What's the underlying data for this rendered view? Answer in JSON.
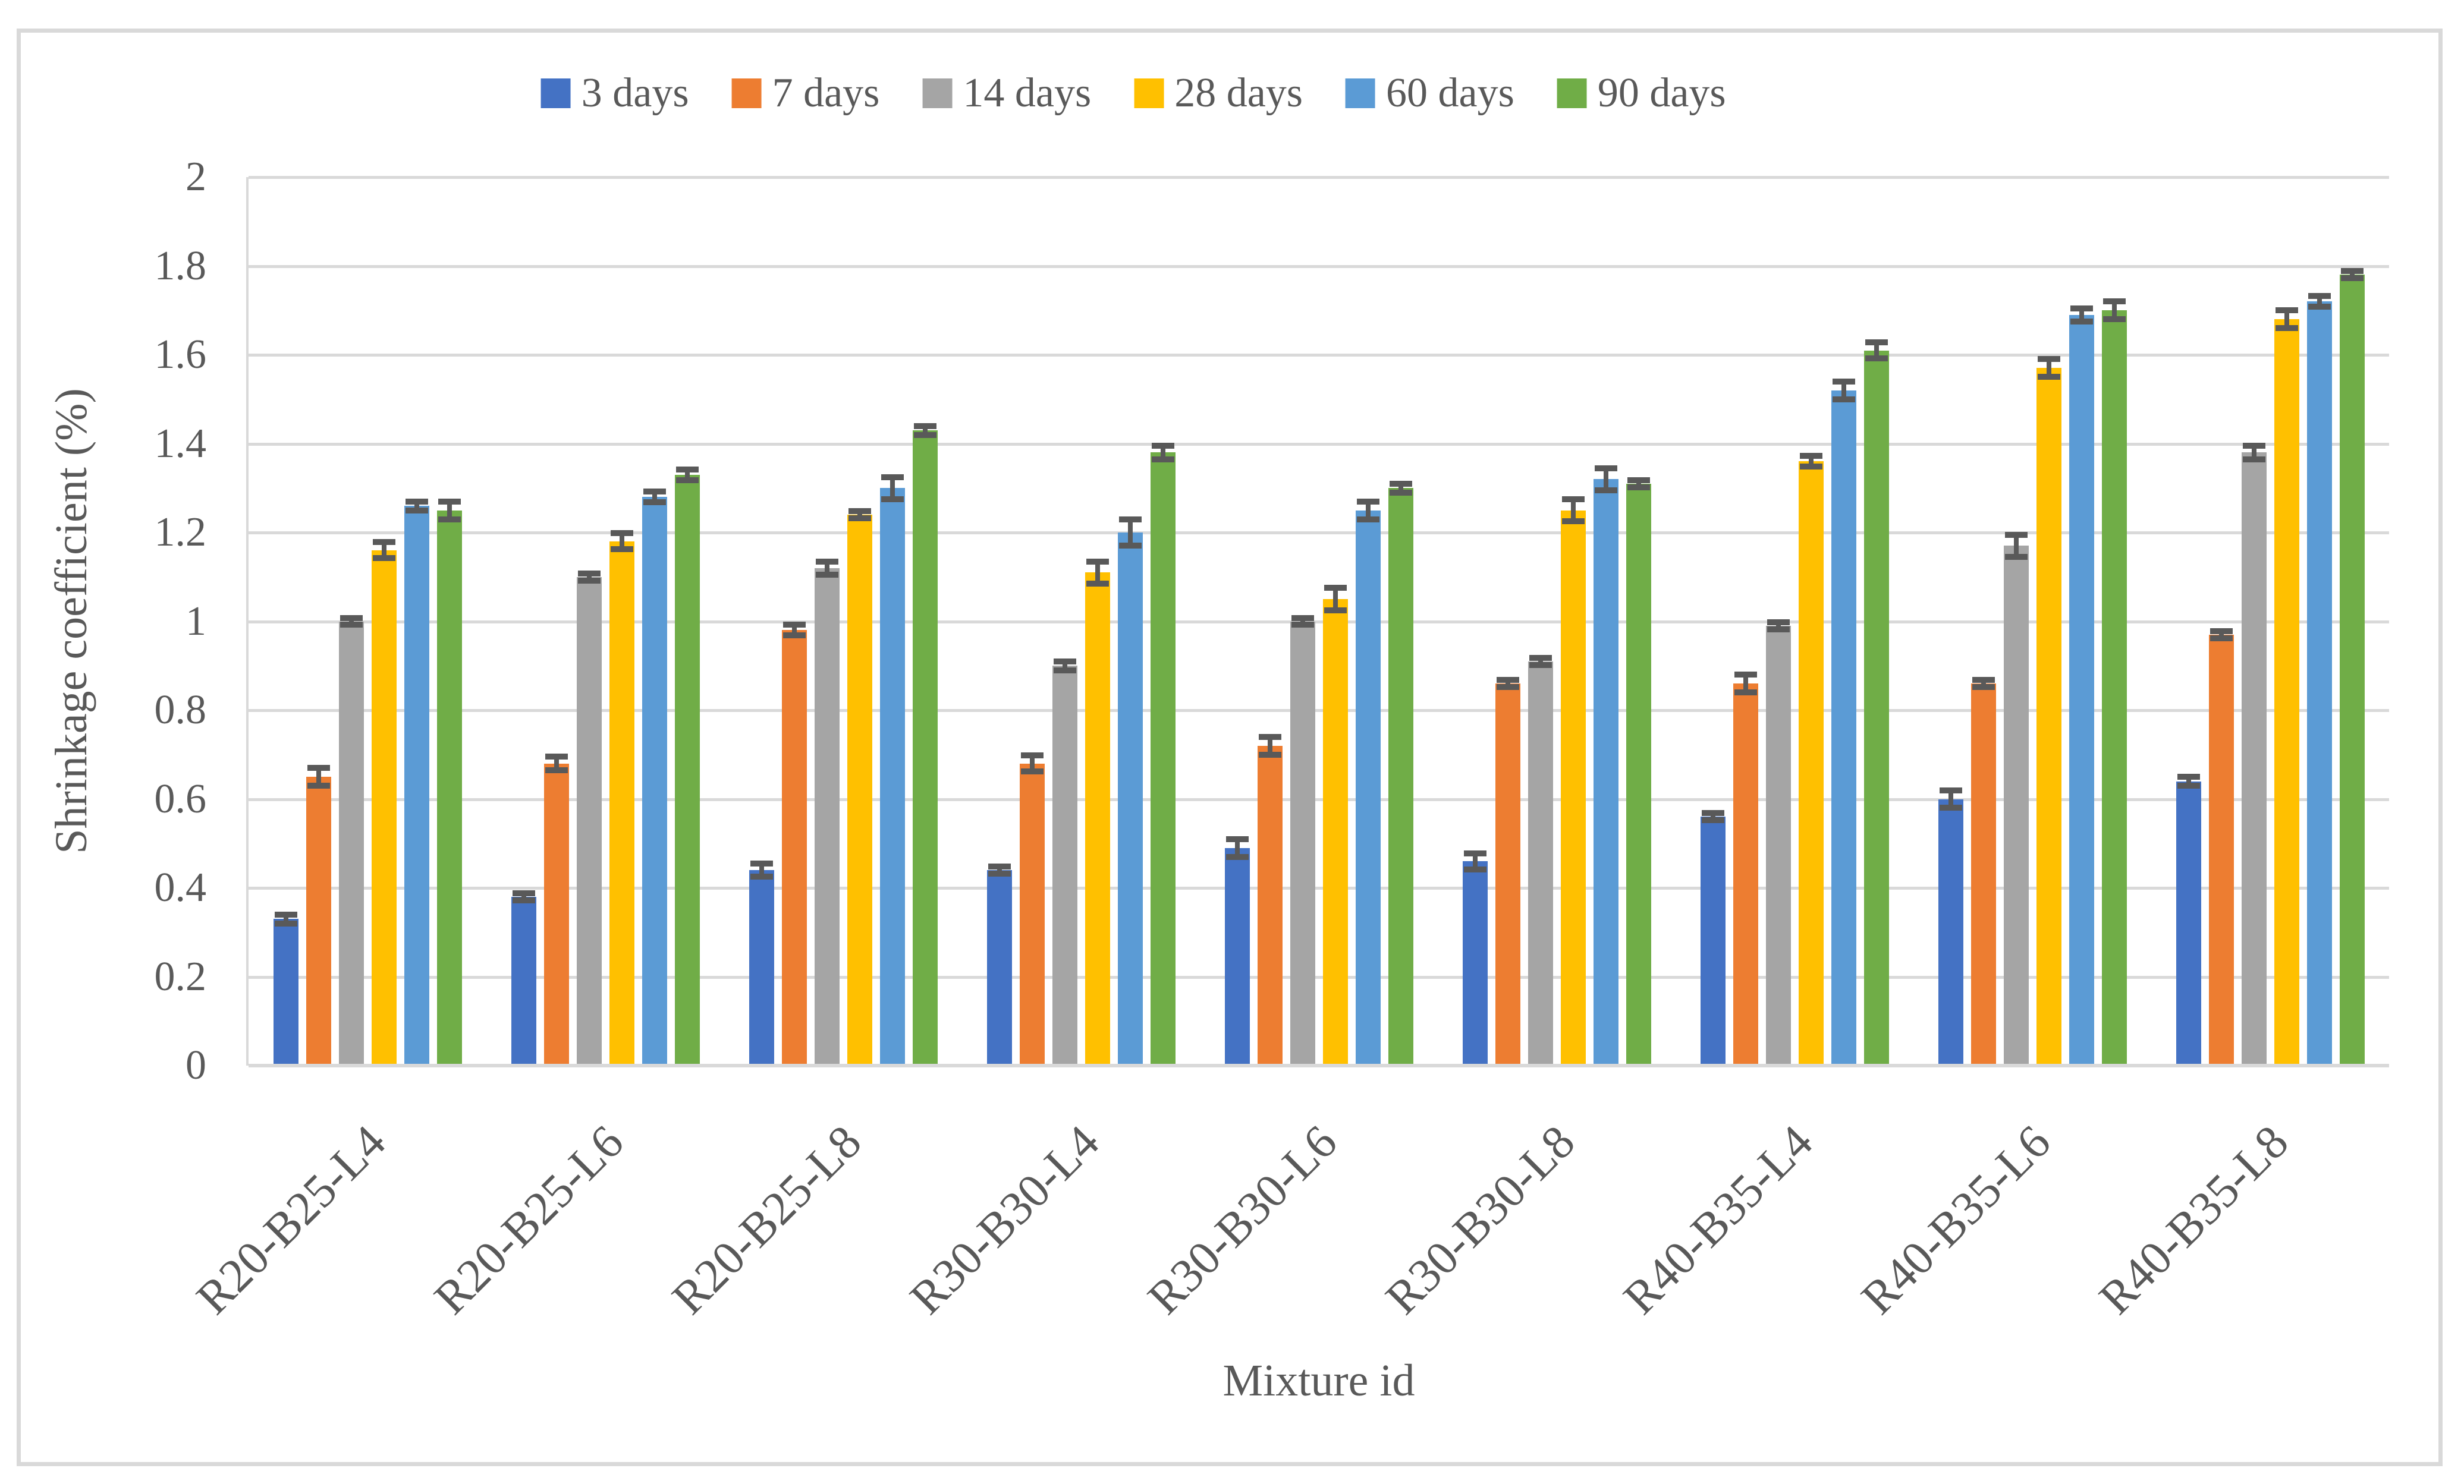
{
  "figure": {
    "background": "#FFFFFF",
    "border_color": "#D9D9D9"
  },
  "chart_data": {
    "type": "bar",
    "title": "",
    "xlabel": "Mixture id",
    "ylabel": "Shrinkage coefficient (%)",
    "ylim": [
      0,
      2
    ],
    "ytick_labels": [
      "2",
      "1.8",
      "1.6",
      "1.4",
      "1.2",
      "1",
      "0.8",
      "0.6",
      "0.4",
      "0.2",
      "0"
    ],
    "grid": true,
    "legend_position": "top-center",
    "error_bars": true,
    "gridline_color": "#D9D9D9",
    "error_bar_color": "#595959",
    "text_color": "#595959",
    "categories": [
      "R20-B25-L4",
      "R20-B25-L6",
      "R20-B25-L8",
      "R30-B30-L4",
      "R30-B30-L6",
      "R30-B30-L8",
      "R40-B35-L4",
      "R40-B35-L6",
      "R40-B35-L8"
    ],
    "series": [
      {
        "name": "3 days",
        "color": "#4472C4",
        "values": [
          0.33,
          0.38,
          0.44,
          0.44,
          0.49,
          0.46,
          0.56,
          0.6,
          0.64
        ],
        "errors": [
          0.01,
          0.008,
          0.015,
          0.008,
          0.02,
          0.018,
          0.008,
          0.02,
          0.01
        ]
      },
      {
        "name": "7 days",
        "color": "#ED7D31",
        "values": [
          0.65,
          0.68,
          0.98,
          0.68,
          0.72,
          0.86,
          0.86,
          0.86,
          0.97
        ],
        "errors": [
          0.02,
          0.015,
          0.012,
          0.018,
          0.02,
          0.008,
          0.02,
          0.008,
          0.008
        ]
      },
      {
        "name": "14 days",
        "color": "#A5A5A5",
        "values": [
          1.0,
          1.1,
          1.12,
          0.9,
          1.0,
          0.91,
          0.99,
          1.17,
          1.38
        ],
        "errors": [
          0.008,
          0.008,
          0.015,
          0.01,
          0.008,
          0.008,
          0.008,
          0.025,
          0.015
        ]
      },
      {
        "name": "28 days",
        "color": "#FFC000",
        "values": [
          1.16,
          1.18,
          1.24,
          1.11,
          1.05,
          1.25,
          1.36,
          1.57,
          1.68
        ],
        "errors": [
          0.018,
          0.018,
          0.008,
          0.025,
          0.025,
          0.025,
          0.012,
          0.02,
          0.02
        ]
      },
      {
        "name": "60 days",
        "color": "#5B9BD5",
        "values": [
          1.26,
          1.28,
          1.3,
          1.2,
          1.25,
          1.32,
          1.52,
          1.69,
          1.72
        ],
        "errors": [
          0.01,
          0.012,
          0.025,
          0.03,
          0.02,
          0.025,
          0.02,
          0.015,
          0.012
        ]
      },
      {
        "name": "90 days",
        "color": "#70AD47",
        "values": [
          1.25,
          1.33,
          1.43,
          1.38,
          1.3,
          1.31,
          1.61,
          1.7,
          1.78
        ],
        "errors": [
          0.02,
          0.012,
          0.01,
          0.015,
          0.01,
          0.008,
          0.018,
          0.02,
          0.008
        ]
      }
    ]
  }
}
